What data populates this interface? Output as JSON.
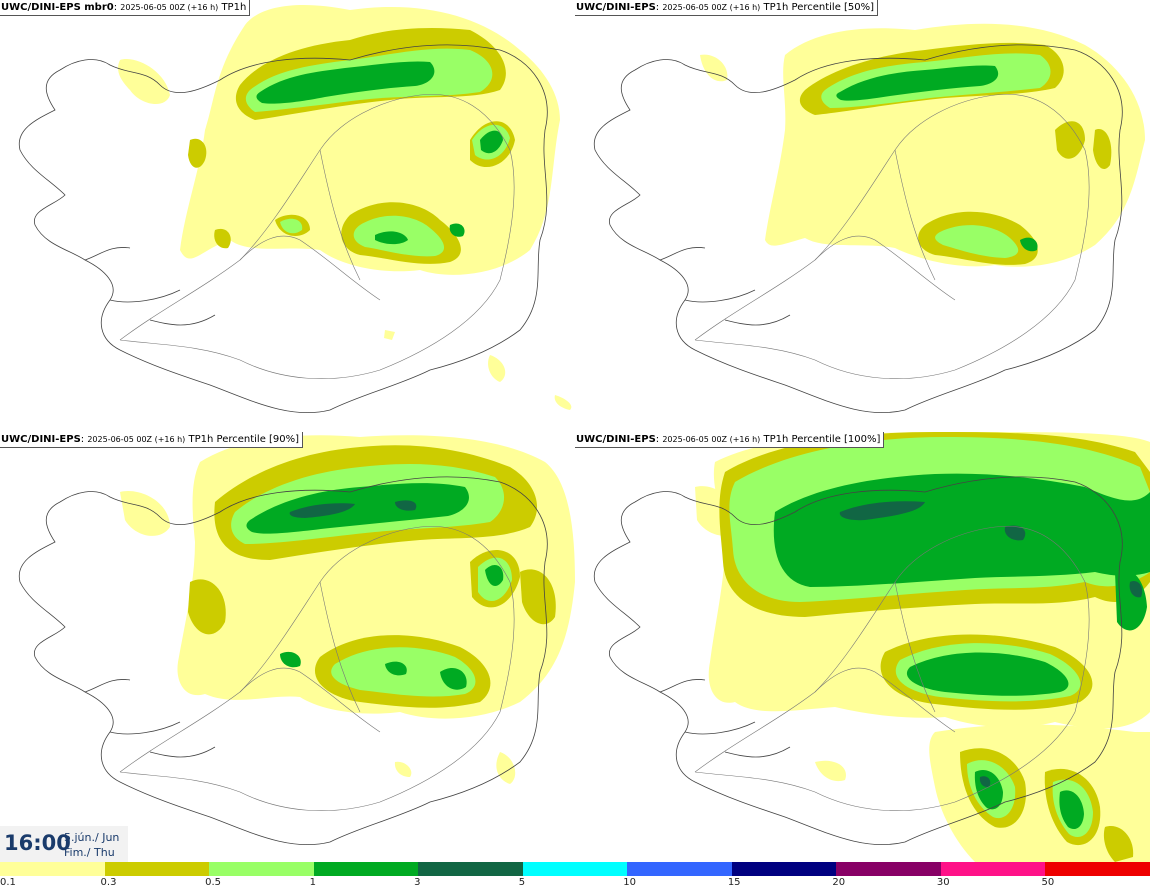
{
  "panels": [
    {
      "model": "UWC/DINI-EPS mbr0",
      "run": "2025-06-05 00Z (+16 h)",
      "param": "TP1h"
    },
    {
      "model": "UWC/DINI-EPS",
      "run": "2025-06-05 00Z (+16 h)",
      "param": "TP1h Percentile [50%]"
    },
    {
      "model": "UWC/DINI-EPS",
      "run": "2025-06-05 00Z (+16 h)",
      "param": "TP1h Percentile [90%]"
    },
    {
      "model": "UWC/DINI-EPS",
      "run": "2025-06-05 00Z (+16 h)",
      "param": "TP1h Percentile [100%]"
    }
  ],
  "valid_time": {
    "time": "16:00",
    "date": "5.jún./ Jun",
    "day": "Fim./ Thu"
  },
  "legend": {
    "bins": [
      {
        "label": "0.1",
        "color": "#ffff99"
      },
      {
        "label": "0.3",
        "color": "#cccc00"
      },
      {
        "label": "0.5",
        "color": "#99ff66"
      },
      {
        "label": "1",
        "color": "#00aa22"
      },
      {
        "label": "3",
        "color": "#116644"
      },
      {
        "label": "5",
        "color": "#00ffff"
      },
      {
        "label": "10",
        "color": "#3366ff"
      },
      {
        "label": "15",
        "color": "#000080"
      },
      {
        "label": "20",
        "color": "#880066"
      },
      {
        "label": "30",
        "color": "#ff1188"
      },
      {
        "label": "50",
        "color": "#ee0000"
      }
    ]
  }
}
